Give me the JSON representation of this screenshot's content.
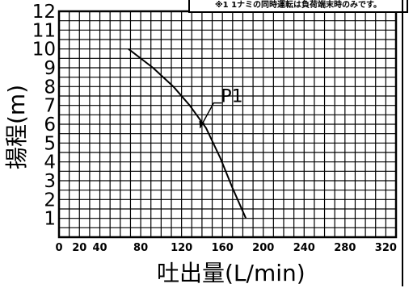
{
  "note": "※1 1ナミの同時運転は負荷端末時のみです。",
  "chart_data": {
    "type": "line",
    "xlabel": "吐出量(L/min)",
    "ylabel": "揚程(m)",
    "xlim": [
      0,
      330
    ],
    "ylim": [
      0,
      12
    ],
    "x_ticks": [
      0,
      20,
      40,
      80,
      120,
      160,
      200,
      240,
      280,
      320
    ],
    "y_ticks": [
      1,
      2,
      3,
      4,
      5,
      6,
      7,
      8,
      9,
      10,
      11,
      12
    ],
    "grid": true,
    "series": [
      {
        "name": "P1",
        "x": [
          68,
          92,
          112,
          128,
          144,
          158,
          170,
          183
        ],
        "y": [
          10,
          9,
          8,
          7,
          5.8,
          4.2,
          2.6,
          1
        ]
      }
    ],
    "annotation": {
      "text": "P1",
      "x": 138,
      "y": 5.8
    }
  }
}
